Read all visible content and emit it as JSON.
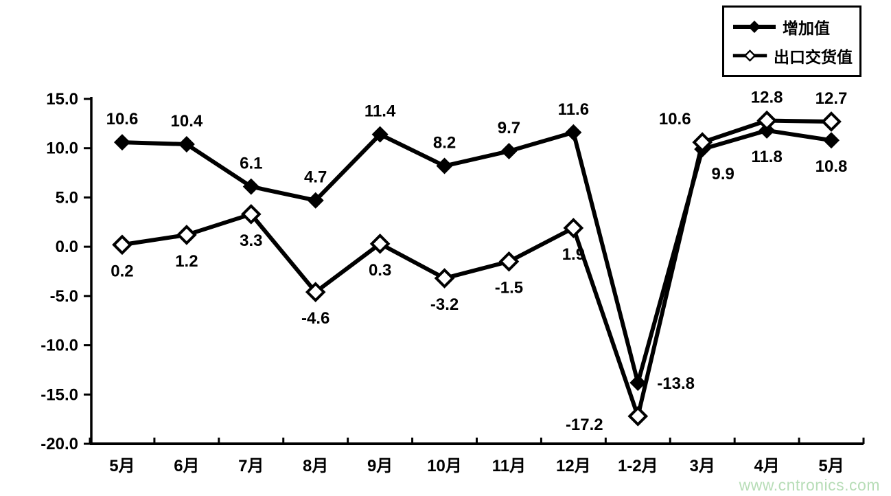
{
  "chart_data": {
    "type": "line",
    "title": "",
    "xlabel": "",
    "ylabel": "",
    "categories": [
      "5月",
      "6月",
      "7月",
      "8月",
      "9月",
      "10月",
      "11月",
      "12月",
      "1-2月",
      "3月",
      "4月",
      "5月"
    ],
    "series": [
      {
        "name": "增加值",
        "marker": "filled-diamond",
        "values": [
          10.6,
          10.4,
          6.1,
          4.7,
          11.4,
          8.2,
          9.7,
          11.6,
          -13.8,
          9.9,
          11.8,
          10.8
        ],
        "label_positions": [
          "above",
          "above",
          "above",
          "above",
          "above",
          "above",
          "above",
          "above",
          "right",
          "below-right",
          "below",
          "below"
        ]
      },
      {
        "name": "出口交货值",
        "marker": "open-diamond",
        "values": [
          0.2,
          1.2,
          3.3,
          -4.6,
          0.3,
          -3.2,
          -1.5,
          1.9,
          -17.2,
          10.6,
          12.8,
          12.7
        ],
        "label_positions": [
          "below",
          "below",
          "below",
          "below",
          "below",
          "below",
          "below",
          "below",
          "below-left",
          "above-left",
          "above",
          "above"
        ]
      }
    ],
    "ylim": [
      -20,
      15
    ],
    "ytick_interval": 5,
    "ytick_labels": [
      "15.0",
      "10.0",
      "5.0",
      "0.0",
      "-5.0",
      "-10.0",
      "-15.0",
      "-20.0"
    ],
    "grid": false,
    "legend_position": "top-right",
    "line_color": "#000000",
    "background_color": "#ffffff"
  },
  "watermark": {
    "text": "www.cntronics.com",
    "color": "#b7ddb7"
  }
}
